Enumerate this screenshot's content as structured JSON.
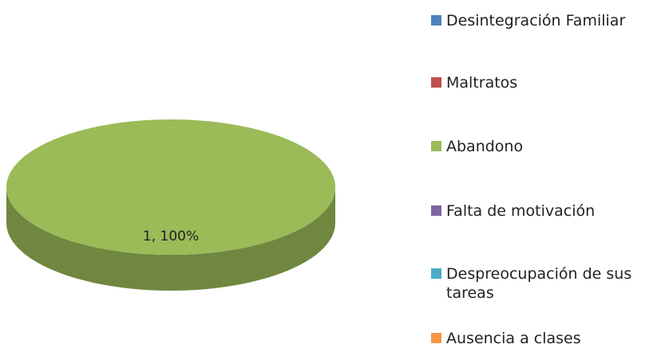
{
  "chart_data": {
    "type": "pie",
    "categories": [
      "Desintegración Familiar",
      "Maltratos",
      "Abandono",
      "Falta de motivación",
      "Despreocupación de sus tareas",
      "Ausencia a clases"
    ],
    "values": [
      0,
      0,
      1,
      0,
      0,
      0
    ],
    "value_labels": [
      null,
      null,
      "1, 100%",
      null,
      null,
      null
    ],
    "colors": [
      "#4f81bd",
      "#c0504d",
      "#9bbb59",
      "#8064a2",
      "#4bacc6",
      "#f79646"
    ],
    "legend": "right"
  }
}
